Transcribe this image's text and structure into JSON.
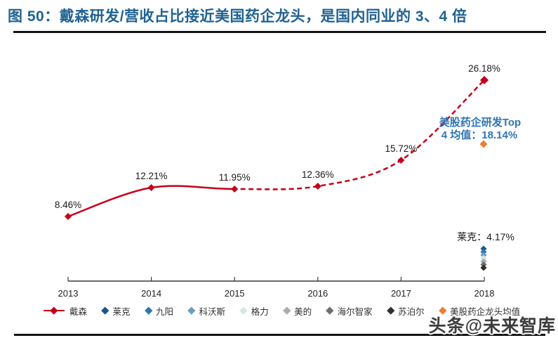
{
  "header": {
    "title": "图 50：戴森研发/营收占比接近美国药企龙头，是国内同业的 3、4 倍",
    "title_color": "#1F6291"
  },
  "watermark": {
    "text": "头条@未来智库"
  },
  "chart_data": {
    "type": "line",
    "x": [
      2013,
      2014,
      2015,
      2016,
      2017,
      2018
    ],
    "series": [
      {
        "name": "戴森",
        "values": [
          8.46,
          12.21,
          11.95,
          12.36,
          15.72,
          26.18
        ],
        "point_labels": [
          "8.46%",
          "12.21%",
          "11.95%",
          "12.36%",
          "15.72%",
          "26.18%"
        ],
        "color": "#C40019",
        "marker": "diamond",
        "line_style": "solid 2013-2015, dashed 2015-2018"
      }
    ],
    "annotations": [
      {
        "id": "us-pharma-top4",
        "lines": [
          "美股药企研发Top",
          "4 均值：18.14%"
        ],
        "value": 18.14,
        "x": 2018,
        "text_color": "#2E74B5",
        "marker": "diamond",
        "marker_color": "#ED7D31"
      },
      {
        "id": "laike-2018",
        "text": "莱克：4.17%",
        "value": 4.17,
        "x": 2018,
        "text_color": "#1A1A1A"
      }
    ],
    "peer_cluster_2018": {
      "note": "overlapping diamond markers of domestic peers stacked below the 莱克 label at 2018",
      "marker_colors": [
        "#17578F",
        "#2E77AE",
        "#6C9DBF",
        "#D8E4E6",
        "#ABABAB",
        "#6E6E6E",
        "#2F2F2F"
      ]
    },
    "ylim": [
      0,
      28
    ],
    "grid": false,
    "legend_position": "bottom",
    "axis_color": "#3C3C3C",
    "label_color": "#1A1A1A"
  },
  "legend": {
    "items": [
      {
        "label": "戴森",
        "color": "#C40019",
        "marker": "line-diamond"
      },
      {
        "label": "莱克",
        "color": "#17578F",
        "marker": "diamond"
      },
      {
        "label": "九阳",
        "color": "#2E77AE",
        "marker": "diamond"
      },
      {
        "label": "科沃斯",
        "color": "#6C9DBF",
        "marker": "diamond"
      },
      {
        "label": "格力",
        "color": "#D8E4E6",
        "marker": "diamond"
      },
      {
        "label": "美的",
        "color": "#ABABAB",
        "marker": "diamond"
      },
      {
        "label": "海尔智家",
        "color": "#6E6E6E",
        "marker": "diamond"
      },
      {
        "label": "苏泊尔",
        "color": "#2F2F2F",
        "marker": "diamond"
      },
      {
        "label": "美股药企龙头均值",
        "color": "#ED7D31",
        "marker": "diamond"
      }
    ]
  }
}
